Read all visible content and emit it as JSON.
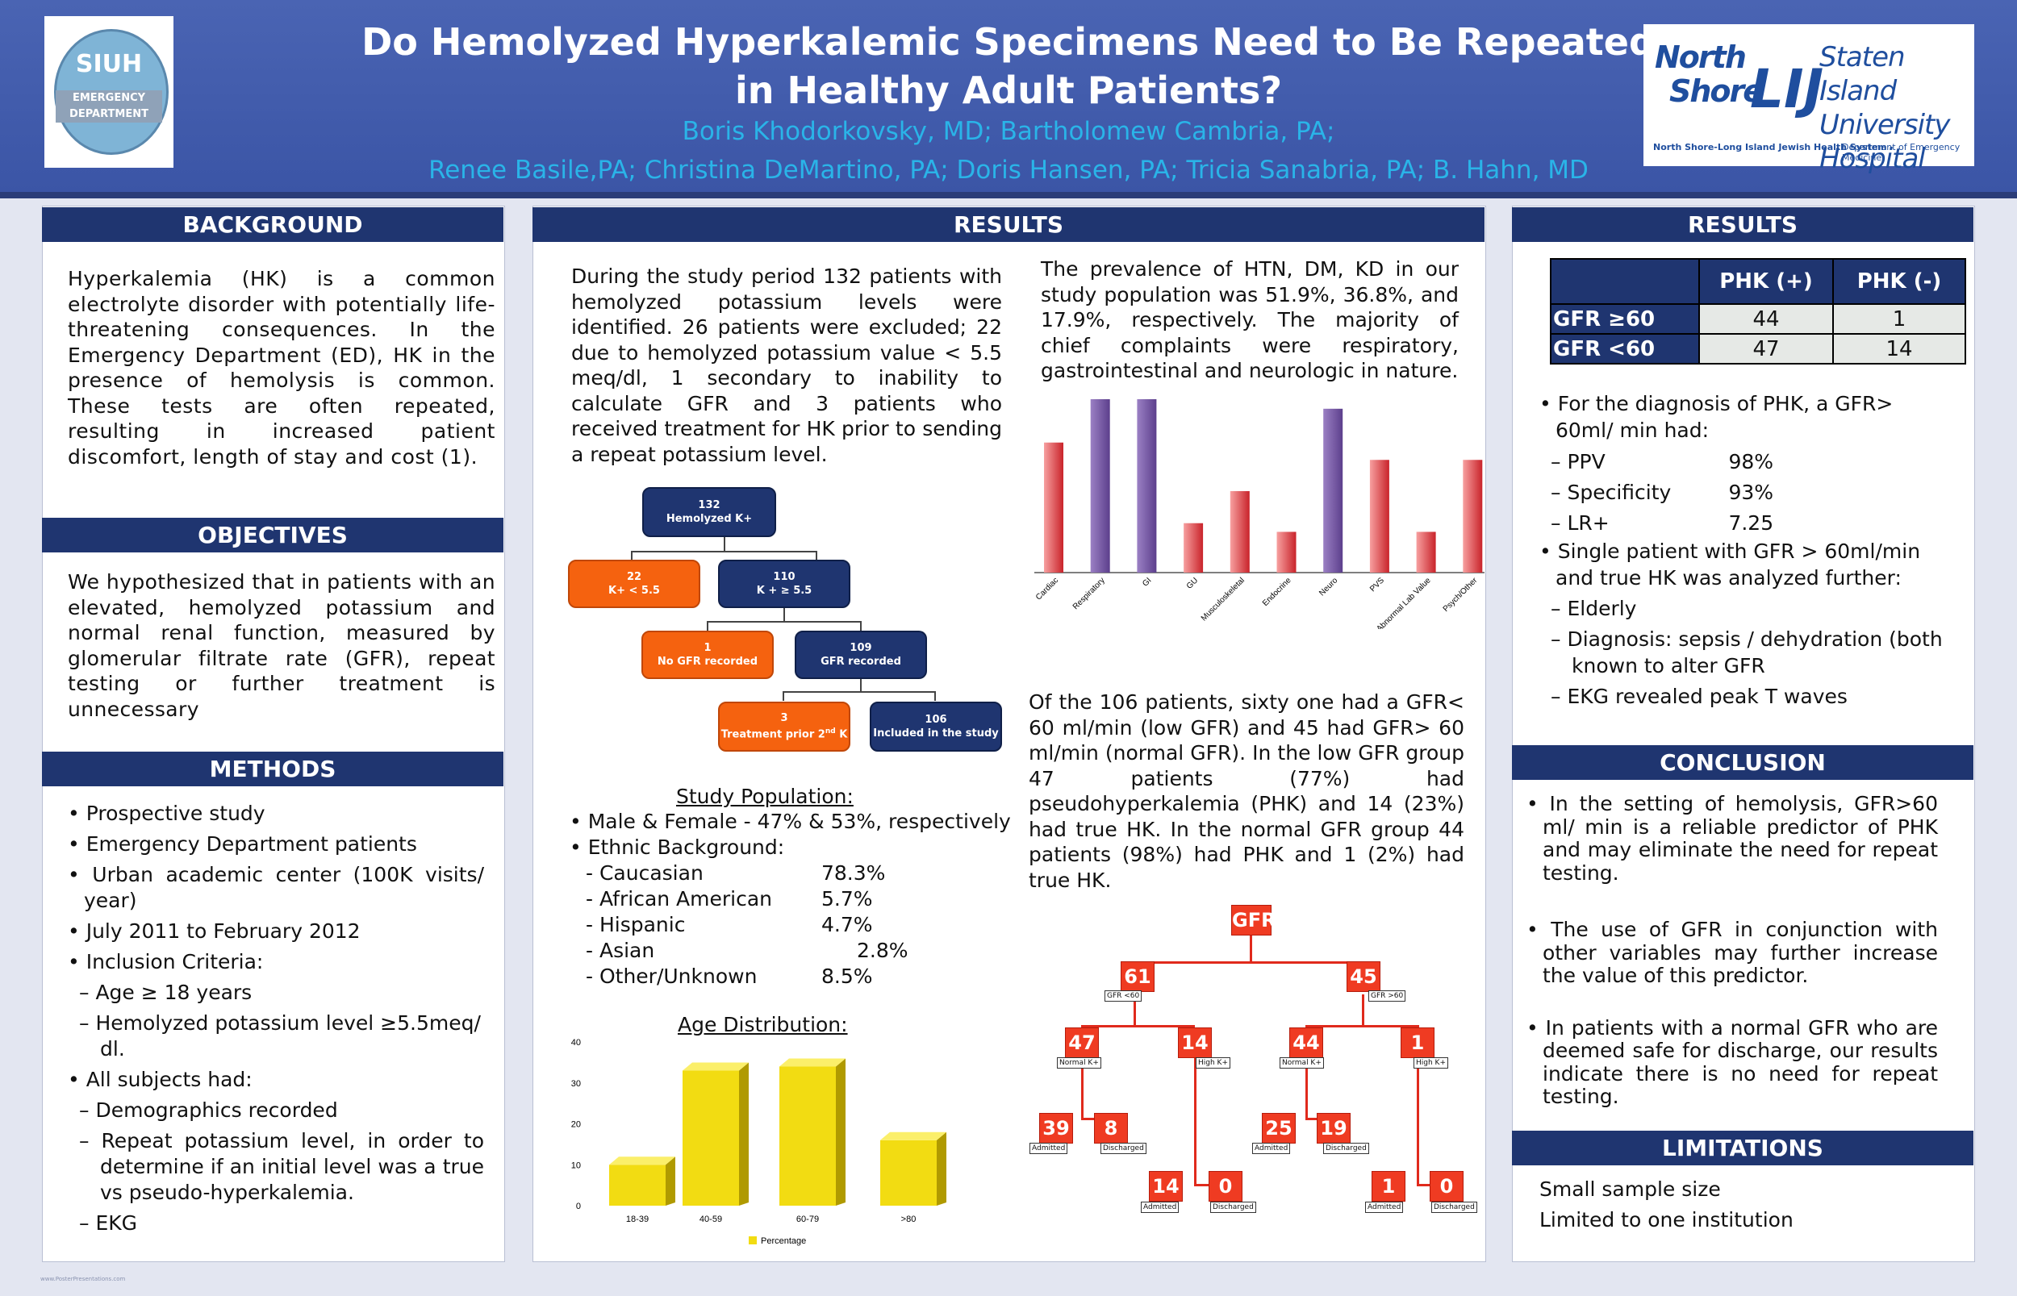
{
  "header": {
    "title_line1": "Do Hemolyzed Hyperkalemic Specimens Need to Be Repeated",
    "title_line2": "in Healthy Adult Patients?",
    "authors_line1": "Boris Khodorkovsky, MD; Bartholomew Cambria, PA;",
    "authors_line2": "Renee Basile,PA; Christina DeMartino, PA; Doris Hansen, PA; Tricia Sanabria, PA; B. Hahn, MD",
    "logo_left": {
      "top": "SIUH",
      "bottom": "EMERGENCY DEPARTMENT"
    },
    "logo_right": {
      "north": "North",
      "shore": "Shore",
      "lij": "LIJ",
      "hospital_line1": "Staten Island",
      "hospital_line2": "University Hospital",
      "sub1": "North Shore-Long Island Jewish Health System",
      "sub2": "Department of Emergency Medicine"
    }
  },
  "background": {
    "heading": "BACKGROUND",
    "text": "Hyperkalemia (HK) is a common electrolyte disorder with potentially life-threatening consequences. In the Emergency Department (ED), HK in the presence of hemolysis is common. These tests are often repeated, resulting in increased patient discomfort, length of stay and cost (1)."
  },
  "objectives": {
    "heading": "OBJECTIVES",
    "text": "We hypothesized that in patients with an elevated, hemolyzed potassium and normal renal function, measured by glomerular filtrate rate (GFR), repeat testing or further treatment is unnecessary"
  },
  "methods": {
    "heading": "METHODS",
    "b1": "Prospective study",
    "b2": "Emergency Department patients",
    "b3": "Urban academic center (100K visits/ year)",
    "b4": "July 2011 to February 2012",
    "b5": "Inclusion Criteria:",
    "b5a": "Age ≥  18 years",
    "b5b": "Hemolyzed potassium level ≥5.5meq/ dl.",
    "b6": "All subjects had:",
    "b6a": "Demographics recorded",
    "b6b": " Repeat potassium level, in order to determine if an initial level was a true vs pseudo-hyperkalemia.",
    "b6c": "EKG"
  },
  "results_mid": {
    "heading": "RESULTS",
    "intro": "During the study period 132 patients with hemolyzed potassium levels were identified. 26 patients were excluded; 22 due to hemolyzed potassium value < 5.5 meq/dl, 1 secondary to inability to calculate GFR and 3 patients who received treatment for HK prior to sending a repeat potassium level.",
    "flow": {
      "n132": "132",
      "n132_label": "Hemolyzed K+",
      "n22": "22",
      "n22_label": "K+ < 5.5",
      "n110": "110",
      "n110_label": "K + ≥ 5.5",
      "n1": "1",
      "n1_label": "No GFR recorded",
      "n109": "109",
      "n109_label": "GFR recorded",
      "n3": "3",
      "n3_label_pre": "Treatment prior 2",
      "n3_sup": "nd",
      "n3_label_post": " K",
      "n106": "106",
      "n106_label": "Included in the study"
    },
    "population": {
      "title": "Study Population:",
      "sex": "Male & Female - 47% & 53%, respectively",
      "ethnic": "Ethnic Background:",
      "rows": [
        {
          "label": "- Caucasian",
          "value": "78.3%"
        },
        {
          "label": "- African American",
          "value": "5.7%"
        },
        {
          "label": "- Hispanic",
          "value": "4.7%"
        },
        {
          "label": "- Asian",
          "value": "2.8%"
        },
        {
          "label": "- Other/Unknown",
          "value": "8.5%"
        }
      ]
    },
    "prevalence": "The prevalence of HTN, DM, KD in our study population was 51.9%, 36.8%, and 17.9%, respectively. The majority of chief complaints were respiratory, gastrointestinal and neurologic in nature.",
    "gfr_text": "Of the 106 patients, sixty one had a GFR< 60 ml/min (low GFR) and 45 had GFR> 60 ml/min (normal GFR). In the low GFR group 47 patients (77%) had pseudohyperkalemia (PHK) and 14 (23%) had true HK. In the normal GFR group 44 patients (98%) had PHK and 1 (2%) had true HK.",
    "tree": {
      "root": "GFR",
      "l": "61",
      "l_lab": "GFR <60",
      "r": "45",
      "r_lab": "GFR >60",
      "ll": "47",
      "ll_lab": "Normal K+",
      "lr": "14",
      "lr_lab": "High K+",
      "rl": "44",
      "rl_lab": "Normal K+",
      "rr": "1",
      "rr_lab": "High K+",
      "lll": "39",
      "lll_lab": "Admitted",
      "llr": "8",
      "llr_lab": "Discharged",
      "lrl": "14",
      "lrl_lab": "Admitted",
      "lrr": "0",
      "lrr_lab": "Discharged",
      "rll": "25",
      "rll_lab": "Admitted",
      "rlr": "19",
      "rlr_lab": "Discharged",
      "rrl": "1",
      "rrl_lab": "Admitted",
      "rrr": "0",
      "rrr_lab": "Discharged"
    }
  },
  "chart_data": [
    {
      "type": "bar",
      "categories": [
        "Cardiac",
        "Respiratory",
        "GI",
        "GU",
        "Musculoskeletal",
        "Endocrine",
        "Neuro",
        "PVS",
        "Abnormal Lab Value",
        "Psych/Other"
      ],
      "values": [
        15,
        20,
        20,
        5.7,
        9.4,
        4.7,
        18.9,
        13,
        4.7,
        13
      ],
      "colors": [
        "#e0464c",
        "#7b5ba3",
        "#7b5ba3",
        "#e0464c",
        "#e0464c",
        "#e0464c",
        "#7b5ba3",
        "#e0464c",
        "#e0464c",
        "#e0464c"
      ],
      "ylim": [
        0,
        20
      ]
    },
    {
      "type": "bar",
      "title": "Age Distribution:",
      "categories": [
        "18-39",
        "40-59",
        "60-79",
        ">80"
      ],
      "values": [
        10,
        33,
        34,
        16
      ],
      "yticks": [
        "0",
        "10",
        "20",
        "30",
        "40"
      ],
      "ylim": [
        0,
        40
      ],
      "legend": "Percentage",
      "color": "#f2dc12"
    }
  ],
  "results_right": {
    "heading": "RESULTS",
    "table": {
      "col1": "PHK (+)",
      "col2": "PHK (-)",
      "r1_label": "GFR ≥60",
      "r1_c1": "44",
      "r1_c2": "1",
      "r2_label": "GFR <60",
      "r2_c1": "47",
      "r2_c2": "14"
    },
    "b1": "For the diagnosis of PHK, a GFR> 60ml/ min had:",
    "ppv_label": "PPV",
    "ppv_val": "98%",
    "spec_label": "Specificity",
    "spec_val": "93%",
    "lr_label": "LR+",
    "lr_val": "7.25",
    "b2": "Single patient with GFR > 60ml/min and true HK was analyzed further:",
    "b2a": "Elderly",
    "b2b": " Diagnosis: sepsis / dehydration (both known to alter GFR",
    "b2c": "EKG revealed peak T waves"
  },
  "conclusion": {
    "heading": "CONCLUSION",
    "b1": "In the setting of hemolysis, GFR>60 ml/ min is a reliable predictor of PHK and may eliminate the need for repeat testing.",
    "b2": "The use of GFR in conjunction with other variables may further increase the value of this predictor.",
    "b3": "In patients with a normal GFR who are deemed safe for discharge, our results indicate there is no need for repeat testing."
  },
  "limitations": {
    "heading": "LIMITATIONS",
    "l1": "Small sample size",
    "l2": "Limited to one institution"
  },
  "footer": "www.PosterPresentations.com"
}
